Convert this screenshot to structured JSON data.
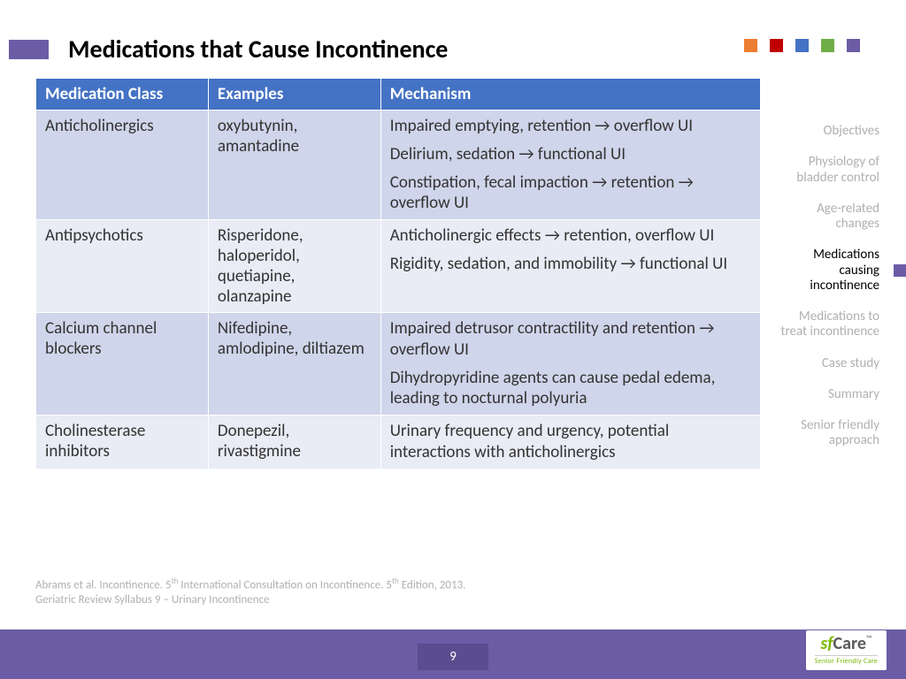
{
  "title": "Medications that Cause Incontinence",
  "accent_color": "#6b5ca5",
  "squares": [
    "#ed7d31",
    "#c00000",
    "#4472c4",
    "#70ad47",
    "#6b5ca5"
  ],
  "table": {
    "header_bg": "#4472c4",
    "row_odd_bg": "#cfd5ea",
    "row_even_bg": "#e9ebf5",
    "columns": [
      "Medication Class",
      "Examples",
      "Mechanism"
    ],
    "rows": [
      {
        "class": "Anticholinergics",
        "examples": "oxybutynin, amantadine",
        "mechanism": [
          "Impaired emptying, retention → overflow UI",
          "Delirium, sedation → functional UI",
          "Constipation, fecal impaction → retention → overflow UI"
        ]
      },
      {
        "class": "Antipsychotics",
        "examples": "Risperidone, haloperidol, quetiapine, olanzapine",
        "mechanism": [
          "Anticholinergic effects → retention, overflow UI",
          "Rigidity, sedation, and immobility → functional UI"
        ]
      },
      {
        "class": "Calcium channel blockers",
        "examples": "Nifedipine, amlodipine, diltiazem",
        "mechanism": [
          "Impaired detrusor contractility and retention → overflow UI",
          "Dihydropyridine agents can cause pedal edema, leading to nocturnal polyuria"
        ]
      },
      {
        "class": "Cholinesterase inhibitors",
        "examples": "Donepezil, rivastigmine",
        "mechanism": [
          "Urinary frequency and urgency,  potential interactions with anticholinergics"
        ]
      }
    ]
  },
  "sidebar": {
    "items": [
      "Objectives",
      "Physiology of bladder control",
      "Age-related changes",
      "Medications causing incontinence",
      "Medications to treat incontinence",
      "Case study",
      "Summary",
      "Senior friendly approach"
    ],
    "active_index": 3
  },
  "citation": {
    "line1_a": "Abrams et al. Incontinence. 5",
    "line1_b": " International Consultation on Incontinence. 5",
    "line1_c": " Edition, 2013.",
    "sup": "th",
    "line2": "Geriatric Review Syllabus 9 – Urinary Incontinence"
  },
  "footer": {
    "bg": "#6b5ca5",
    "page": "9",
    "logo_sf": "sf",
    "logo_care": "Care",
    "logo_tm": "™",
    "logo_tag": "Senior Friendly Care"
  }
}
